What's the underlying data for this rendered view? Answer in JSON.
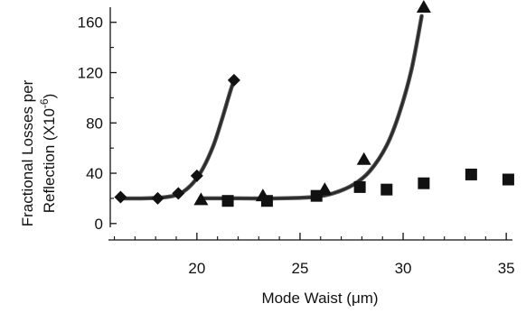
{
  "chart_data": {
    "type": "scatter",
    "title": "",
    "xlabel": "Mode Waist (μm)",
    "ylabel_line1": "Fractional Losses per",
    "ylabel_line2_prefix": "Reflection (X10",
    "ylabel_line2_exp": "-6",
    "ylabel_line2_suffix": ")",
    "xlim": [
      15.8,
      35.3
    ],
    "ylim": [
      -3,
      172
    ],
    "xticks": [
      20,
      25,
      30,
      35
    ],
    "xtick_labels": [
      "20",
      "25",
      "30",
      "35"
    ],
    "yticks": [
      0,
      40,
      80,
      120,
      160
    ],
    "ytick_labels": [
      "0",
      "40",
      "80",
      "120",
      "160"
    ],
    "grid": false,
    "legend": "none",
    "series": [
      {
        "marker": "diamond",
        "color": "#111111",
        "x": [
          16.3,
          18.1,
          19.1,
          20.0,
          21.8
        ],
        "y": [
          21,
          20,
          24,
          38,
          114
        ],
        "fit": {
          "x": [
            16.3,
            17.5,
            18.5,
            19.2,
            19.8,
            20.3,
            20.8,
            21.2,
            21.6,
            21.8
          ],
          "y": [
            20,
            20,
            21,
            24,
            32,
            44,
            62,
            82,
            104,
            114
          ]
        }
      },
      {
        "marker": "triangle",
        "color": "#111111",
        "x": [
          20.2,
          23.2,
          26.2,
          28.1,
          31.0
        ],
        "y": [
          19,
          22,
          27,
          51,
          172
        ],
        "fit": {
          "x": [
            20.2,
            22.0,
            24.0,
            25.6,
            26.6,
            27.6,
            28.4,
            29.2,
            29.8,
            30.4,
            30.9
          ],
          "y": [
            20,
            20,
            20,
            21,
            24,
            31,
            42,
            62,
            87,
            122,
            165
          ]
        }
      },
      {
        "marker": "square",
        "color": "#111111",
        "x": [
          21.5,
          23.4,
          25.8,
          27.9,
          29.2,
          31.0,
          33.3,
          35.1
        ],
        "y": [
          18,
          18,
          22,
          29,
          27,
          32,
          39,
          35
        ],
        "fit": null
      }
    ]
  }
}
